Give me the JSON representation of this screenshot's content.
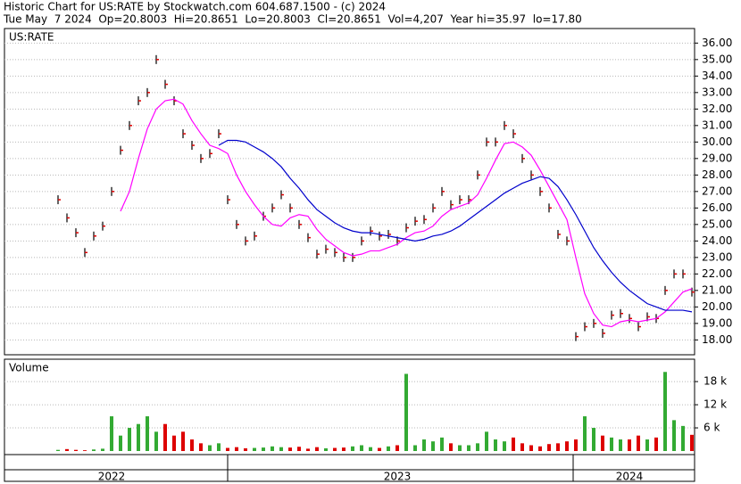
{
  "chart_data": [
    {
      "type": "price",
      "title": "Historic Chart for US:RATE by Stockwatch.com 604.687.1500 - (c) 2024",
      "subtitle": "Tue May  7 2024  Op=20.8003  Hi=20.8651  Lo=20.8003  Cl=20.8651  Vol=4,207  Year hi=35.97  lo=17.80",
      "label": "US:RATE",
      "categories": [
        null,
        null,
        null,
        null,
        null,
        null,
        "2022",
        null,
        null,
        null,
        null,
        null,
        null,
        null,
        null,
        null,
        null,
        null,
        null,
        null,
        null,
        null,
        null,
        null,
        null,
        null,
        null,
        null,
        null,
        null,
        null,
        null,
        null,
        null,
        null,
        null,
        null,
        null,
        "2023",
        null,
        null,
        null,
        null,
        null,
        null,
        null,
        null,
        null,
        null,
        null,
        null,
        null,
        null,
        null,
        null,
        null,
        null,
        null,
        null,
        null,
        null,
        null,
        null,
        null,
        "2024",
        null,
        null,
        null,
        null,
        null,
        null,
        null
      ],
      "series": [
        {
          "color": "#000000",
          "values": [
            26.5,
            25.4,
            24.5,
            23.3,
            24.3,
            24.9,
            27,
            29.5,
            31,
            32.5,
            33,
            35,
            33.5,
            32.5,
            30.5,
            29.8,
            29,
            29.3,
            30.5,
            26.5,
            25,
            24,
            24.3,
            25.5,
            26,
            26.8,
            26,
            25,
            24.2,
            23.2,
            23.5,
            23.3,
            23,
            23,
            24,
            24.6,
            24.3,
            24.4,
            24,
            24.8,
            25.2,
            25.3,
            26,
            27,
            26.2,
            26.5,
            26.5,
            28,
            30,
            30,
            31,
            30.5,
            29,
            28,
            27,
            26,
            24.4,
            24,
            18.2,
            18.8,
            19,
            18.4,
            19.5,
            19.6,
            19.3,
            18.8,
            19.4,
            19.3,
            21,
            22,
            22,
            20.9
          ]
        },
        {
          "color": "#ff00ff",
          "values": [
            null,
            null,
            null,
            null,
            null,
            null,
            null,
            25.8,
            27,
            29,
            30.8,
            32,
            32.5,
            32.6,
            32.3,
            31.3,
            30.5,
            29.8,
            29.6,
            29.3,
            28,
            27,
            26.2,
            25.5,
            25,
            24.9,
            25.4,
            25.6,
            25.5,
            24.7,
            24.1,
            23.7,
            23.3,
            23.1,
            23.2,
            23.4,
            23.4,
            23.6,
            23.8,
            24.2,
            24.5,
            24.6,
            24.9,
            25.5,
            25.9,
            26.1,
            26.3,
            26.8,
            27.8,
            28.9,
            29.9,
            30,
            29.7,
            29.2,
            28.3,
            27.3,
            26.3,
            25.3,
            23,
            20.8,
            19.6,
            18.9,
            18.8,
            19.1,
            19.2,
            19.1,
            19.2,
            19.3,
            19.7,
            20.3,
            20.9,
            21.1
          ]
        },
        {
          "color": "#0000cc",
          "values": [
            null,
            null,
            null,
            null,
            null,
            null,
            null,
            null,
            null,
            null,
            null,
            null,
            null,
            null,
            null,
            null,
            null,
            null,
            29.8,
            30.1,
            30.1,
            30,
            29.7,
            29.4,
            29,
            28.5,
            27.8,
            27.2,
            26.5,
            25.9,
            25.5,
            25.1,
            24.8,
            24.6,
            24.5,
            24.5,
            24.4,
            24.3,
            24.2,
            24.1,
            24,
            24.1,
            24.3,
            24.4,
            24.6,
            24.9,
            25.3,
            25.7,
            26.1,
            26.5,
            26.9,
            27.2,
            27.5,
            27.7,
            27.9,
            27.8,
            27.3,
            26.5,
            25.6,
            24.6,
            23.6,
            22.8,
            22.1,
            21.5,
            21,
            20.6,
            20.2,
            20,
            19.8,
            19.8,
            19.8,
            19.7
          ]
        }
      ],
      "ylim": [
        17.1,
        36.45
      ],
      "yticks": [
        {
          "value": 18,
          "label": "18.00"
        },
        {
          "value": 19,
          "label": "19.00"
        },
        {
          "value": 20,
          "label": "20.00"
        },
        {
          "value": 21,
          "label": "21.00"
        },
        {
          "value": 22,
          "label": "22.00"
        },
        {
          "value": 23,
          "label": "23.00"
        },
        {
          "value": 24,
          "label": "24.00"
        },
        {
          "value": 25,
          "label": "25.00"
        },
        {
          "value": 26,
          "label": "26.00"
        },
        {
          "value": 27,
          "label": "27.00"
        },
        {
          "value": 28,
          "label": "28.00"
        },
        {
          "value": 29,
          "label": "29.00"
        },
        {
          "value": 30,
          "label": "30.00"
        },
        {
          "value": 31,
          "label": "31.00"
        },
        {
          "value": 32,
          "label": "32.00"
        },
        {
          "value": 33,
          "label": "33.00"
        },
        {
          "value": 34,
          "label": "34.00"
        },
        {
          "value": 35,
          "label": "35.00"
        },
        {
          "value": 36,
          "label": "36.00"
        }
      ]
    },
    {
      "type": "volume",
      "title": "Volume",
      "values": [
        300,
        500,
        300,
        200,
        400,
        600,
        9000,
        4000,
        6000,
        7000,
        9000,
        5000,
        7000,
        4000,
        5000,
        3000,
        2000,
        1500,
        2000,
        800,
        1000,
        700,
        800,
        900,
        1200,
        1000,
        900,
        1100,
        600,
        1000,
        700,
        800,
        900,
        1200,
        1500,
        1000,
        800,
        1200,
        1500,
        20000,
        1500,
        3000,
        2500,
        3500,
        2000,
        1500,
        1500,
        2000,
        5000,
        3000,
        2500,
        3500,
        2000,
        1500,
        1200,
        1800,
        2000,
        2500,
        3000,
        9000,
        6000,
        4000,
        3500,
        3000,
        3000,
        4000,
        3000,
        3500,
        20500,
        8000,
        6500,
        4200
      ],
      "up_color": "#33aa33",
      "down_color": "#dd0000",
      "ylim": [
        0,
        23800
      ],
      "yticks": [
        {
          "value": 6000,
          "label": "6 k"
        },
        {
          "value": 12000,
          "label": "12 k"
        },
        {
          "value": 18000,
          "label": "18 k"
        }
      ]
    }
  ]
}
